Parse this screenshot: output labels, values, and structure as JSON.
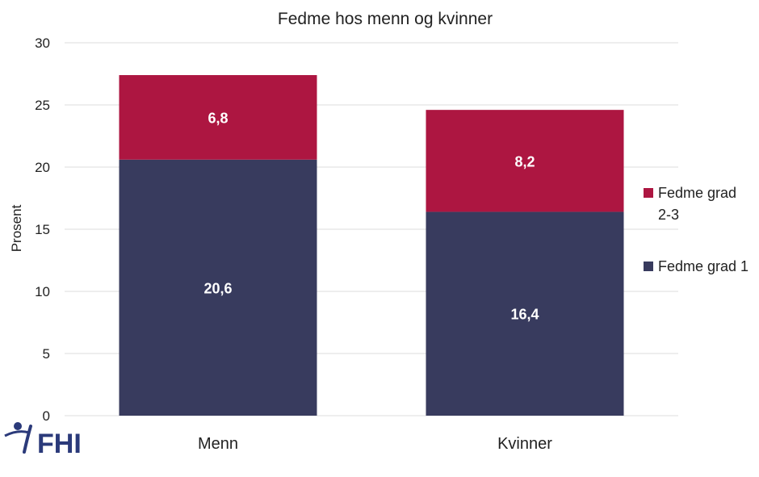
{
  "chart_data": {
    "type": "bar",
    "stacked": true,
    "title": "Fedme hos menn og kvinner",
    "ylabel": "Prosent",
    "xlabel": "",
    "categories": [
      "Menn",
      "Kvinner"
    ],
    "ylim": [
      0,
      30
    ],
    "yticks": [
      0,
      5,
      10,
      15,
      20,
      25,
      30
    ],
    "grid": true,
    "legend_position": "right",
    "series": [
      {
        "name": "Fedme grad 1",
        "values": [
          20.6,
          16.4
        ],
        "labels": [
          "20,6",
          "16,4"
        ],
        "color": "#383b5e"
      },
      {
        "name_lines": [
          "Fedme grad",
          "2-3"
        ],
        "values": [
          6.8,
          8.2
        ],
        "labels": [
          "6,8",
          "8,2"
        ],
        "color": "#ad1641"
      }
    ]
  },
  "logo": {
    "text": "FHI",
    "color": "#2b3a7a"
  }
}
